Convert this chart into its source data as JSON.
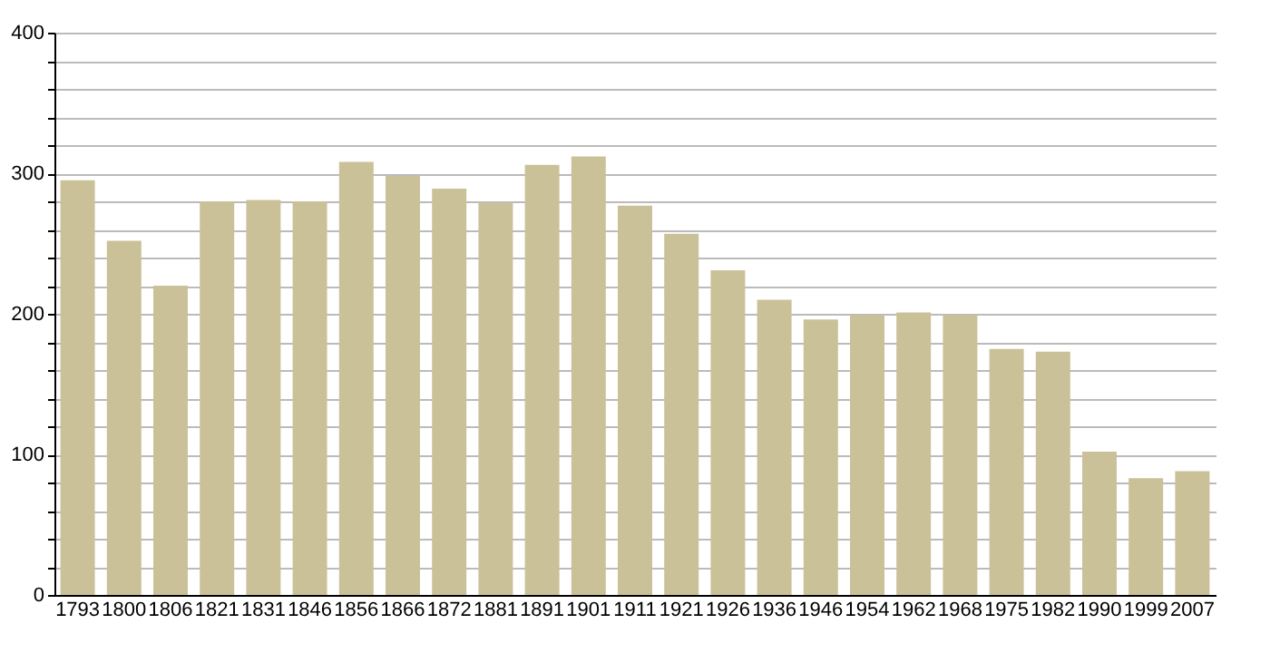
{
  "chart_data": {
    "type": "bar",
    "categories": [
      "1793",
      "1800",
      "1806",
      "1821",
      "1831",
      "1846",
      "1856",
      "1866",
      "1872",
      "1881",
      "1891",
      "1901",
      "1911",
      "1921",
      "1926",
      "1936",
      "1946",
      "1954",
      "1962",
      "1968",
      "1975",
      "1982",
      "1990",
      "1999",
      "2007"
    ],
    "values": [
      295,
      252,
      220,
      280,
      281,
      280,
      308,
      298,
      289,
      279,
      306,
      312,
      277,
      257,
      231,
      210,
      196,
      199,
      201,
      199,
      175,
      173,
      102,
      83,
      88
    ],
    "color": "#cbc199",
    "ylim": [
      0,
      400
    ],
    "yticks": [
      0,
      {
        "value": 20,
        "label": null
      },
      {
        "value": 40,
        "label": null
      },
      {
        "value": 60,
        "label": null
      },
      {
        "value": 80,
        "label": null
      },
      100,
      {
        "value": 120,
        "label": null
      },
      {
        "value": 140,
        "label": null
      },
      {
        "value": 160,
        "label": null
      },
      {
        "value": 180,
        "label": null
      },
      200,
      {
        "value": 220,
        "label": null
      },
      {
        "value": 240,
        "label": null
      },
      {
        "value": 260,
        "label": null
      },
      {
        "value": 280,
        "label": null
      },
      300,
      {
        "value": 320,
        "label": null
      },
      {
        "value": 340,
        "label": null
      },
      {
        "value": 360,
        "label": null
      },
      {
        "value": 380,
        "label": null
      },
      400
    ],
    "grid": "y"
  }
}
